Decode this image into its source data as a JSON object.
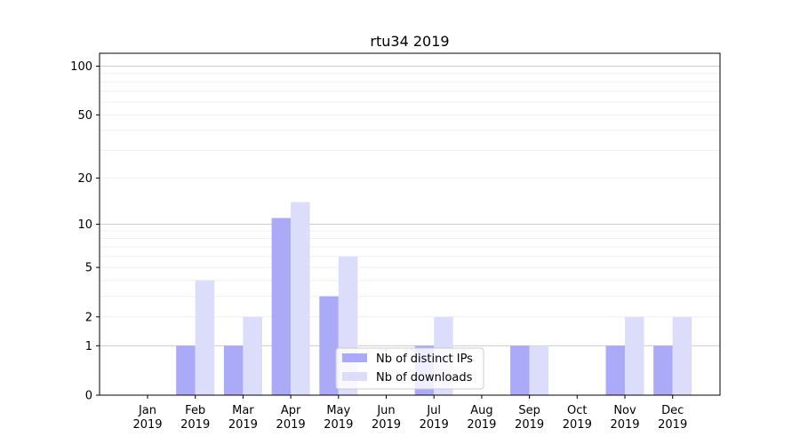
{
  "chart_data": {
    "type": "bar",
    "title": "rtu34 2019",
    "categories": [
      "Jan\n2019",
      "Feb\n2019",
      "Mar\n2019",
      "Apr\n2019",
      "May\n2019",
      "Jun\n2019",
      "Jul\n2019",
      "Aug\n2019",
      "Sep\n2019",
      "Oct\n2019",
      "Nov\n2019",
      "Dec\n2019"
    ],
    "series": [
      {
        "name": "Nb of distinct IPs",
        "color": "#aaaaf8",
        "values": [
          0,
          1,
          1,
          11,
          3,
          0,
          1,
          0,
          1,
          0,
          1,
          1
        ]
      },
      {
        "name": "Nb of downloads",
        "color": "#dcdcfb",
        "values": [
          0,
          4,
          2,
          14,
          6,
          0,
          2,
          0,
          1,
          0,
          2,
          2
        ]
      }
    ],
    "yscale": "symlog",
    "yticks": [
      0,
      1,
      2,
      5,
      10,
      20,
      50,
      100
    ],
    "ylim": [
      0,
      120
    ],
    "grid": true,
    "legend": "lower-center"
  }
}
